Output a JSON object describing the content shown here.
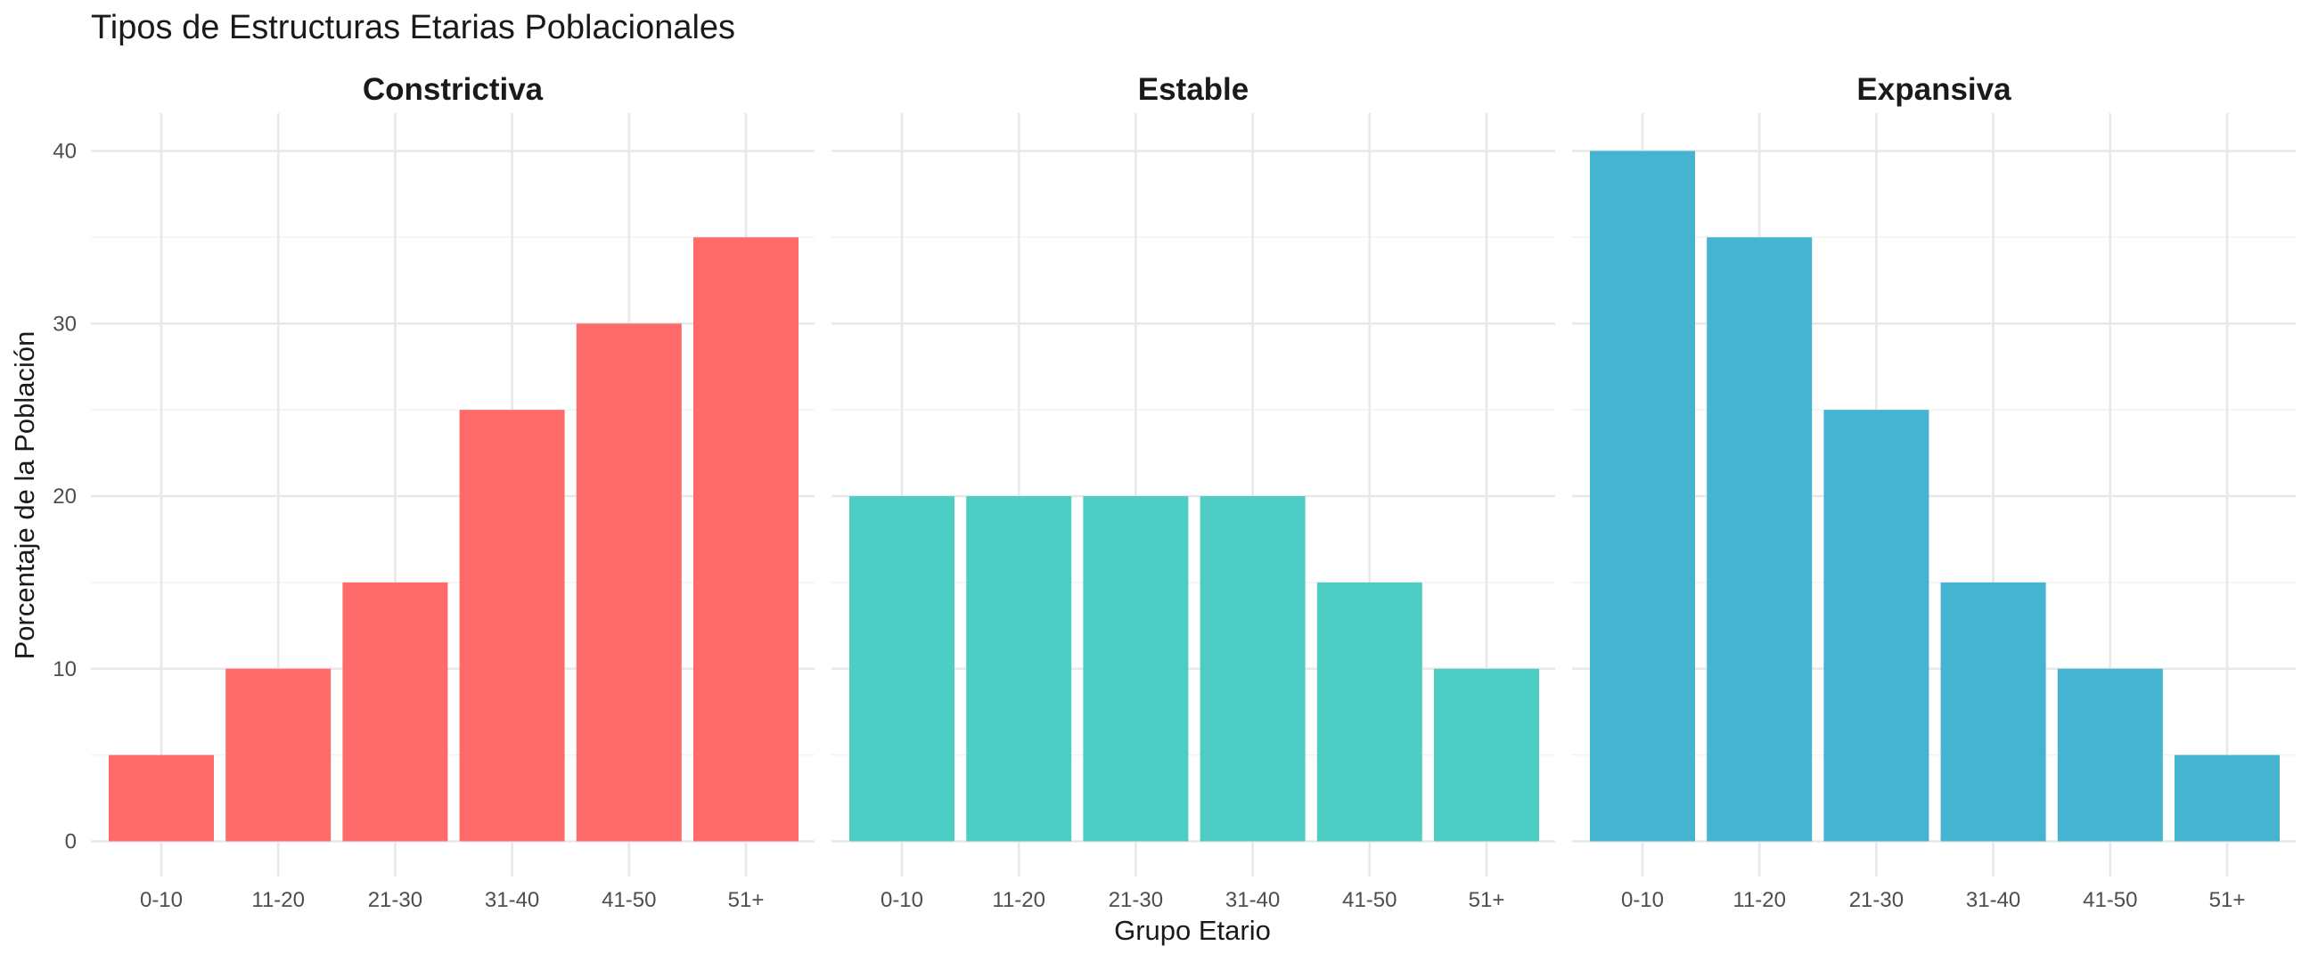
{
  "chart_data": {
    "type": "bar",
    "title": "Tipos de Estructuras Etarias Poblacionales",
    "xlabel": "Grupo Etario",
    "ylabel": "Porcentaje de la Población",
    "categories": [
      "0-10",
      "11-20",
      "21-30",
      "31-40",
      "41-50",
      "51+"
    ],
    "ylim": [
      0,
      40
    ],
    "yticks": [
      0,
      10,
      20,
      30,
      40
    ],
    "grid": true,
    "legend": "none",
    "facets": [
      {
        "title": "Constrictiva",
        "color": "#FF6B6B",
        "values": [
          5,
          10,
          15,
          25,
          30,
          35
        ]
      },
      {
        "title": "Estable",
        "color": "#4ECDC4",
        "values": [
          20,
          20,
          20,
          20,
          15,
          10
        ]
      },
      {
        "title": "Expansiva",
        "color": "#45B4D0",
        "values": [
          40,
          35,
          25,
          15,
          10,
          5
        ]
      }
    ]
  }
}
